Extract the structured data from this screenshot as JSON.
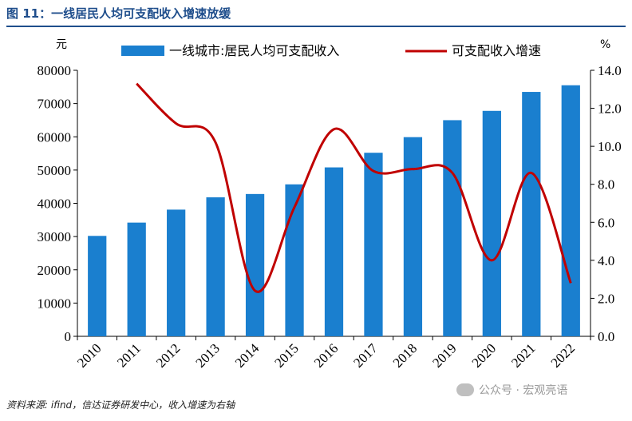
{
  "header": {
    "title": "图 11：一线居民人均可支配收入增速放缓"
  },
  "footer": {
    "source": "资料来源: ifind，信达证券研发中心，收入增速为右轴"
  },
  "watermark": {
    "text": "公众号 · 宏观亮语",
    "icon": "wechat-icon"
  },
  "chart_data": {
    "type": "bar",
    "categories": [
      "2010",
      "2011",
      "2012",
      "2013",
      "2014",
      "2015",
      "2016",
      "2017",
      "2018",
      "2019",
      "2020",
      "2021",
      "2022"
    ],
    "series": [
      {
        "name": "一线城市:居民人均可支配收入",
        "type": "bar",
        "axis": "left",
        "color": "#1a7fcf",
        "values": [
          30200,
          34200,
          38100,
          41800,
          42800,
          45700,
          50800,
          55200,
          59900,
          65000,
          67800,
          73500,
          75500
        ]
      },
      {
        "name": "可支配收入增速",
        "type": "line",
        "axis": "right",
        "color": "#c00000",
        "values": [
          null,
          13.3,
          11.2,
          10.2,
          2.4,
          6.8,
          10.9,
          8.7,
          8.8,
          8.6,
          4.0,
          8.6,
          2.8
        ]
      }
    ],
    "y_left": {
      "unit": "元",
      "min": 0,
      "max": 80000,
      "ticks": [
        "0",
        "10000",
        "20000",
        "30000",
        "40000",
        "50000",
        "60000",
        "70000",
        "80000"
      ]
    },
    "y_right": {
      "unit": "%",
      "min": 0,
      "max": 14,
      "ticks": [
        "0.0",
        "2.0",
        "4.0",
        "6.0",
        "8.0",
        "10.0",
        "12.0",
        "14.0"
      ]
    },
    "grid": false,
    "legend_position": "top"
  }
}
